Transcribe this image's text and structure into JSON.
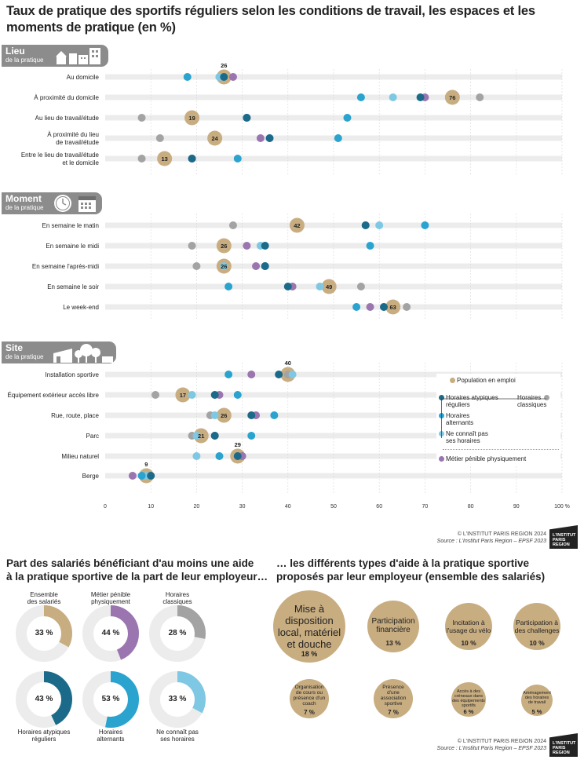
{
  "title": "Taux de pratique des sportifs réguliers selon les conditions de travail, les espaces et les moments de pratique (en %)",
  "sections": [
    {
      "title": "Lieu",
      "subtitle": "de la pratique"
    },
    {
      "title": "Moment",
      "subtitle": "de la pratique"
    },
    {
      "title": "Site",
      "subtitle": "de la pratique"
    }
  ],
  "colors": {
    "population": "#c8ad81",
    "atypiques": "#1b6a8a",
    "alternants": "#2aa3cf",
    "ne_connait_pas": "#7ec8e3",
    "classiques": "#a3a3a3",
    "penible": "#9a75b0"
  },
  "chart_data": {
    "type": "scatter",
    "x_axis": {
      "range": [
        0,
        100
      ],
      "ticks": [
        "0",
        "10",
        "20",
        "30",
        "40",
        "50",
        "60",
        "70",
        "80",
        "90",
        "100 %"
      ]
    },
    "grid": true,
    "legend_position": "bottom-right",
    "series_labels": {
      "population": "Population en emploi",
      "atypiques": "Horaires atypiques réguliers",
      "alternants": "Horaires alternants",
      "ne_connait_pas": "Ne connaît pas ses horaires",
      "classiques": "Horaires classiques",
      "penible": "Métier pénible physiquement"
    },
    "rows": [
      {
        "section": "Lieu",
        "label": [
          "Au domicile"
        ],
        "population": 26,
        "atypiques": 26,
        "alternants": 18,
        "ne_connait_pas": 25,
        "classiques": 25,
        "penible": 28
      },
      {
        "section": "Lieu",
        "label": [
          "À proximité du domicile"
        ],
        "population": 76,
        "atypiques": 69,
        "alternants": 56,
        "ne_connait_pas": 63,
        "classiques": 82,
        "penible": 70
      },
      {
        "section": "Lieu",
        "label": [
          "Au lieu de travail/étude"
        ],
        "population": 19,
        "atypiques": 31,
        "alternants": 53,
        "ne_connait_pas": 31,
        "classiques": 8,
        "penible": 31
      },
      {
        "section": "Lieu",
        "label": [
          "À proximité du lieu",
          "de travail/étude"
        ],
        "population": 24,
        "atypiques": 36,
        "alternants": 51,
        "ne_connait_pas": 36,
        "classiques": 12,
        "penible": 34
      },
      {
        "section": "Lieu",
        "label": [
          "Entre le lieu de travail/étude",
          "et le domicile"
        ],
        "population": 13,
        "atypiques": 19,
        "alternants": 29,
        "ne_connait_pas": 19,
        "classiques": 8,
        "penible": 19
      },
      {
        "section": "Moment",
        "label": [
          "En semaine le matin"
        ],
        "population": 42,
        "atypiques": 57,
        "alternants": 70,
        "ne_connait_pas": 60,
        "classiques": 28,
        "penible": 57
      },
      {
        "section": "Moment",
        "label": [
          "En semaine le midi"
        ],
        "population": 26,
        "atypiques": 35,
        "alternants": 58,
        "ne_connait_pas": 34,
        "classiques": 19,
        "penible": 31
      },
      {
        "section": "Moment",
        "label": [
          "En semaine l'après-midi"
        ],
        "population": 26,
        "atypiques": 35,
        "alternants": 35,
        "ne_connait_pas": 26,
        "classiques": 20,
        "penible": 33
      },
      {
        "section": "Moment",
        "label": [
          "En semaine le soir"
        ],
        "population": 49,
        "atypiques": 40,
        "alternants": 27,
        "ne_connait_pas": 47,
        "classiques": 56,
        "penible": 41
      },
      {
        "section": "Moment",
        "label": [
          "Le week-end"
        ],
        "population": 63,
        "atypiques": 61,
        "alternants": 55,
        "ne_connait_pas": 61,
        "classiques": 66,
        "penible": 58
      },
      {
        "section": "Site",
        "label": [
          "Installation sportive"
        ],
        "population": 40,
        "atypiques": 38,
        "alternants": 27,
        "ne_connait_pas": 41,
        "classiques": 40,
        "penible": 32
      },
      {
        "section": "Site",
        "label": [
          "Équipement extérieur accès libre"
        ],
        "population": 17,
        "atypiques": 24,
        "alternants": 29,
        "ne_connait_pas": 19,
        "classiques": 11,
        "penible": 25
      },
      {
        "section": "Site",
        "label": [
          "Rue, route, place"
        ],
        "population": 26,
        "atypiques": 32,
        "alternants": 37,
        "ne_connait_pas": 24,
        "classiques": 23,
        "penible": 33
      },
      {
        "section": "Site",
        "label": [
          "Parc"
        ],
        "population": 21,
        "atypiques": 24,
        "alternants": 32,
        "ne_connait_pas": 20,
        "classiques": 19,
        "penible": 24
      },
      {
        "section": "Site",
        "label": [
          "Milieu naturel"
        ],
        "population": 29,
        "atypiques": 29,
        "alternants": 25,
        "ne_connait_pas": 20,
        "classiques": 30,
        "penible": 30
      },
      {
        "section": "Site",
        "label": [
          "Berge"
        ],
        "population": 9,
        "atypiques": 10,
        "alternants": 8,
        "ne_connait_pas": 9,
        "classiques": 9,
        "penible": 6
      }
    ],
    "value_labels": [
      {
        "row": 0,
        "text": "26",
        "position": "above"
      },
      {
        "row": 1,
        "text": "76",
        "position": "inside"
      },
      {
        "row": 2,
        "text": "19",
        "position": "inside"
      },
      {
        "row": 3,
        "text": "24",
        "position": "inside"
      },
      {
        "row": 4,
        "text": "13",
        "position": "inside"
      },
      {
        "row": 5,
        "text": "42",
        "position": "inside"
      },
      {
        "row": 6,
        "text": "26",
        "position": "inside"
      },
      {
        "row": 7,
        "text": "26",
        "position": "inside"
      },
      {
        "row": 8,
        "text": "49",
        "position": "inside"
      },
      {
        "row": 9,
        "text": "63",
        "position": "inside"
      },
      {
        "row": 10,
        "text": "40",
        "position": "above"
      },
      {
        "row": 11,
        "text": "17",
        "position": "inside"
      },
      {
        "row": 12,
        "text": "26",
        "position": "inside"
      },
      {
        "row": 13,
        "text": "21",
        "position": "inside"
      },
      {
        "row": 14,
        "text": "29",
        "position": "above"
      },
      {
        "row": 15,
        "text": "9",
        "position": "above"
      }
    ]
  },
  "legend": {
    "population": "Population en emploi",
    "atypiques": [
      "Horaires atypiques",
      "réguliers"
    ],
    "classiques": [
      "Horaires",
      "classiques"
    ],
    "alternants": [
      "Horaires",
      "alternants"
    ],
    "ne_connait_pas": [
      "Ne connaît pas",
      "ses horaires"
    ],
    "penible": "Métier pénible physiquement"
  },
  "credit1": {
    "copyright": "© L'INSTITUT PARIS REGION 2024",
    "source": "Source : L'Institut Paris Region – EPSF 2023"
  },
  "credit2": {
    "copyright": "© L'INSTITUT PARIS REGION 2024",
    "source": "Source : L'Institut Paris Region – EPSF 2023"
  },
  "logo": {
    "line1": "L'INSTITUT",
    "line2": "PARIS",
    "line3": "REGION"
  },
  "left_title": [
    "Part des salariés bénéficiant d'au moins une aide",
    "à la pratique sportive de la part de leur employeur…"
  ],
  "right_title": [
    "… les différents types d'aide à la pratique sportive",
    "proposés par leur employeur (ensemble des salariés)"
  ],
  "donuts": [
    {
      "label": [
        "Ensemble",
        "des salariés"
      ],
      "value": 33,
      "pct": "33 %",
      "color": "#c8ad81",
      "label_pos": "top"
    },
    {
      "label": [
        "Métier pénible",
        "physiquement"
      ],
      "value": 44,
      "pct": "44 %",
      "color": "#9a75b0",
      "label_pos": "top"
    },
    {
      "label": [
        "Horaires",
        "classiques"
      ],
      "value": 28,
      "pct": "28 %",
      "color": "#a3a3a3",
      "label_pos": "top"
    },
    {
      "label": [
        "Horaires atypiques",
        "réguliers"
      ],
      "value": 43,
      "pct": "43 %",
      "color": "#1b6a8a",
      "label_pos": "bottom"
    },
    {
      "label": [
        "Horaires",
        "alternants"
      ],
      "value": 53,
      "pct": "53 %",
      "color": "#2aa3cf",
      "label_pos": "bottom"
    },
    {
      "label": [
        "Ne connaît pas",
        "ses horaires"
      ],
      "value": 33,
      "pct": "33 %",
      "color": "#7ec8e3",
      "label_pos": "bottom"
    }
  ],
  "bubbles": [
    {
      "label": [
        "Mise à",
        "disposition",
        "local, matériel",
        "et douche"
      ],
      "pct": "18 %",
      "value": 18
    },
    {
      "label": [
        "Participation",
        "financière"
      ],
      "pct": "13 %",
      "value": 13
    },
    {
      "label": [
        "Incitation à",
        "l'usage du vélo"
      ],
      "pct": "10 %",
      "value": 10
    },
    {
      "label": [
        "Participation à",
        "des challenges"
      ],
      "pct": "10 %",
      "value": 10
    },
    {
      "label": [
        "Organisation",
        "de cours ou",
        "présence d'un",
        "coach"
      ],
      "pct": "7 %",
      "value": 7
    },
    {
      "label": [
        "Présence",
        "d'une",
        "association",
        "sportive"
      ],
      "pct": "7 %",
      "value": 7
    },
    {
      "label": [
        "Accès à des",
        "créneaux dans",
        "des équipements",
        "sportifs"
      ],
      "pct": "6 %",
      "value": 6
    },
    {
      "label": [
        "Aménagement",
        "des horaires",
        "de travail"
      ],
      "pct": "5 %",
      "value": 5
    }
  ]
}
